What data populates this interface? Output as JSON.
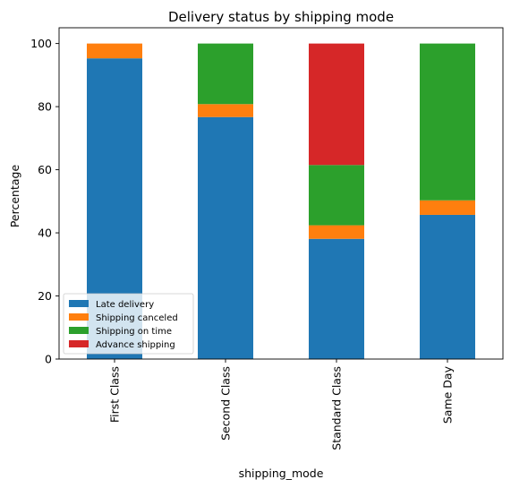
{
  "chart_data": {
    "type": "bar",
    "stacked": true,
    "title": "Delivery status by shipping mode",
    "xlabel": "shipping_mode",
    "ylabel": "Percentage",
    "ylim": [
      0,
      105
    ],
    "yticks": [
      0,
      20,
      40,
      60,
      80,
      100
    ],
    "categories": [
      "First Class",
      "Second Class",
      "Standard Class",
      "Same Day"
    ],
    "series": [
      {
        "name": "Late delivery",
        "color": "#1f77b4",
        "values": [
          95.3,
          76.7,
          38.1,
          45.7
        ]
      },
      {
        "name": "Shipping canceled",
        "color": "#ff7f0e",
        "values": [
          4.7,
          4.1,
          4.3,
          4.6
        ]
      },
      {
        "name": "Shipping on time",
        "color": "#2ca02c",
        "values": [
          0,
          19.2,
          19.1,
          49.7
        ]
      },
      {
        "name": "Advance shipping",
        "color": "#d62728",
        "values": [
          0,
          0,
          38.5,
          0
        ]
      }
    ],
    "legend": "lower-left",
    "grid": false
  }
}
